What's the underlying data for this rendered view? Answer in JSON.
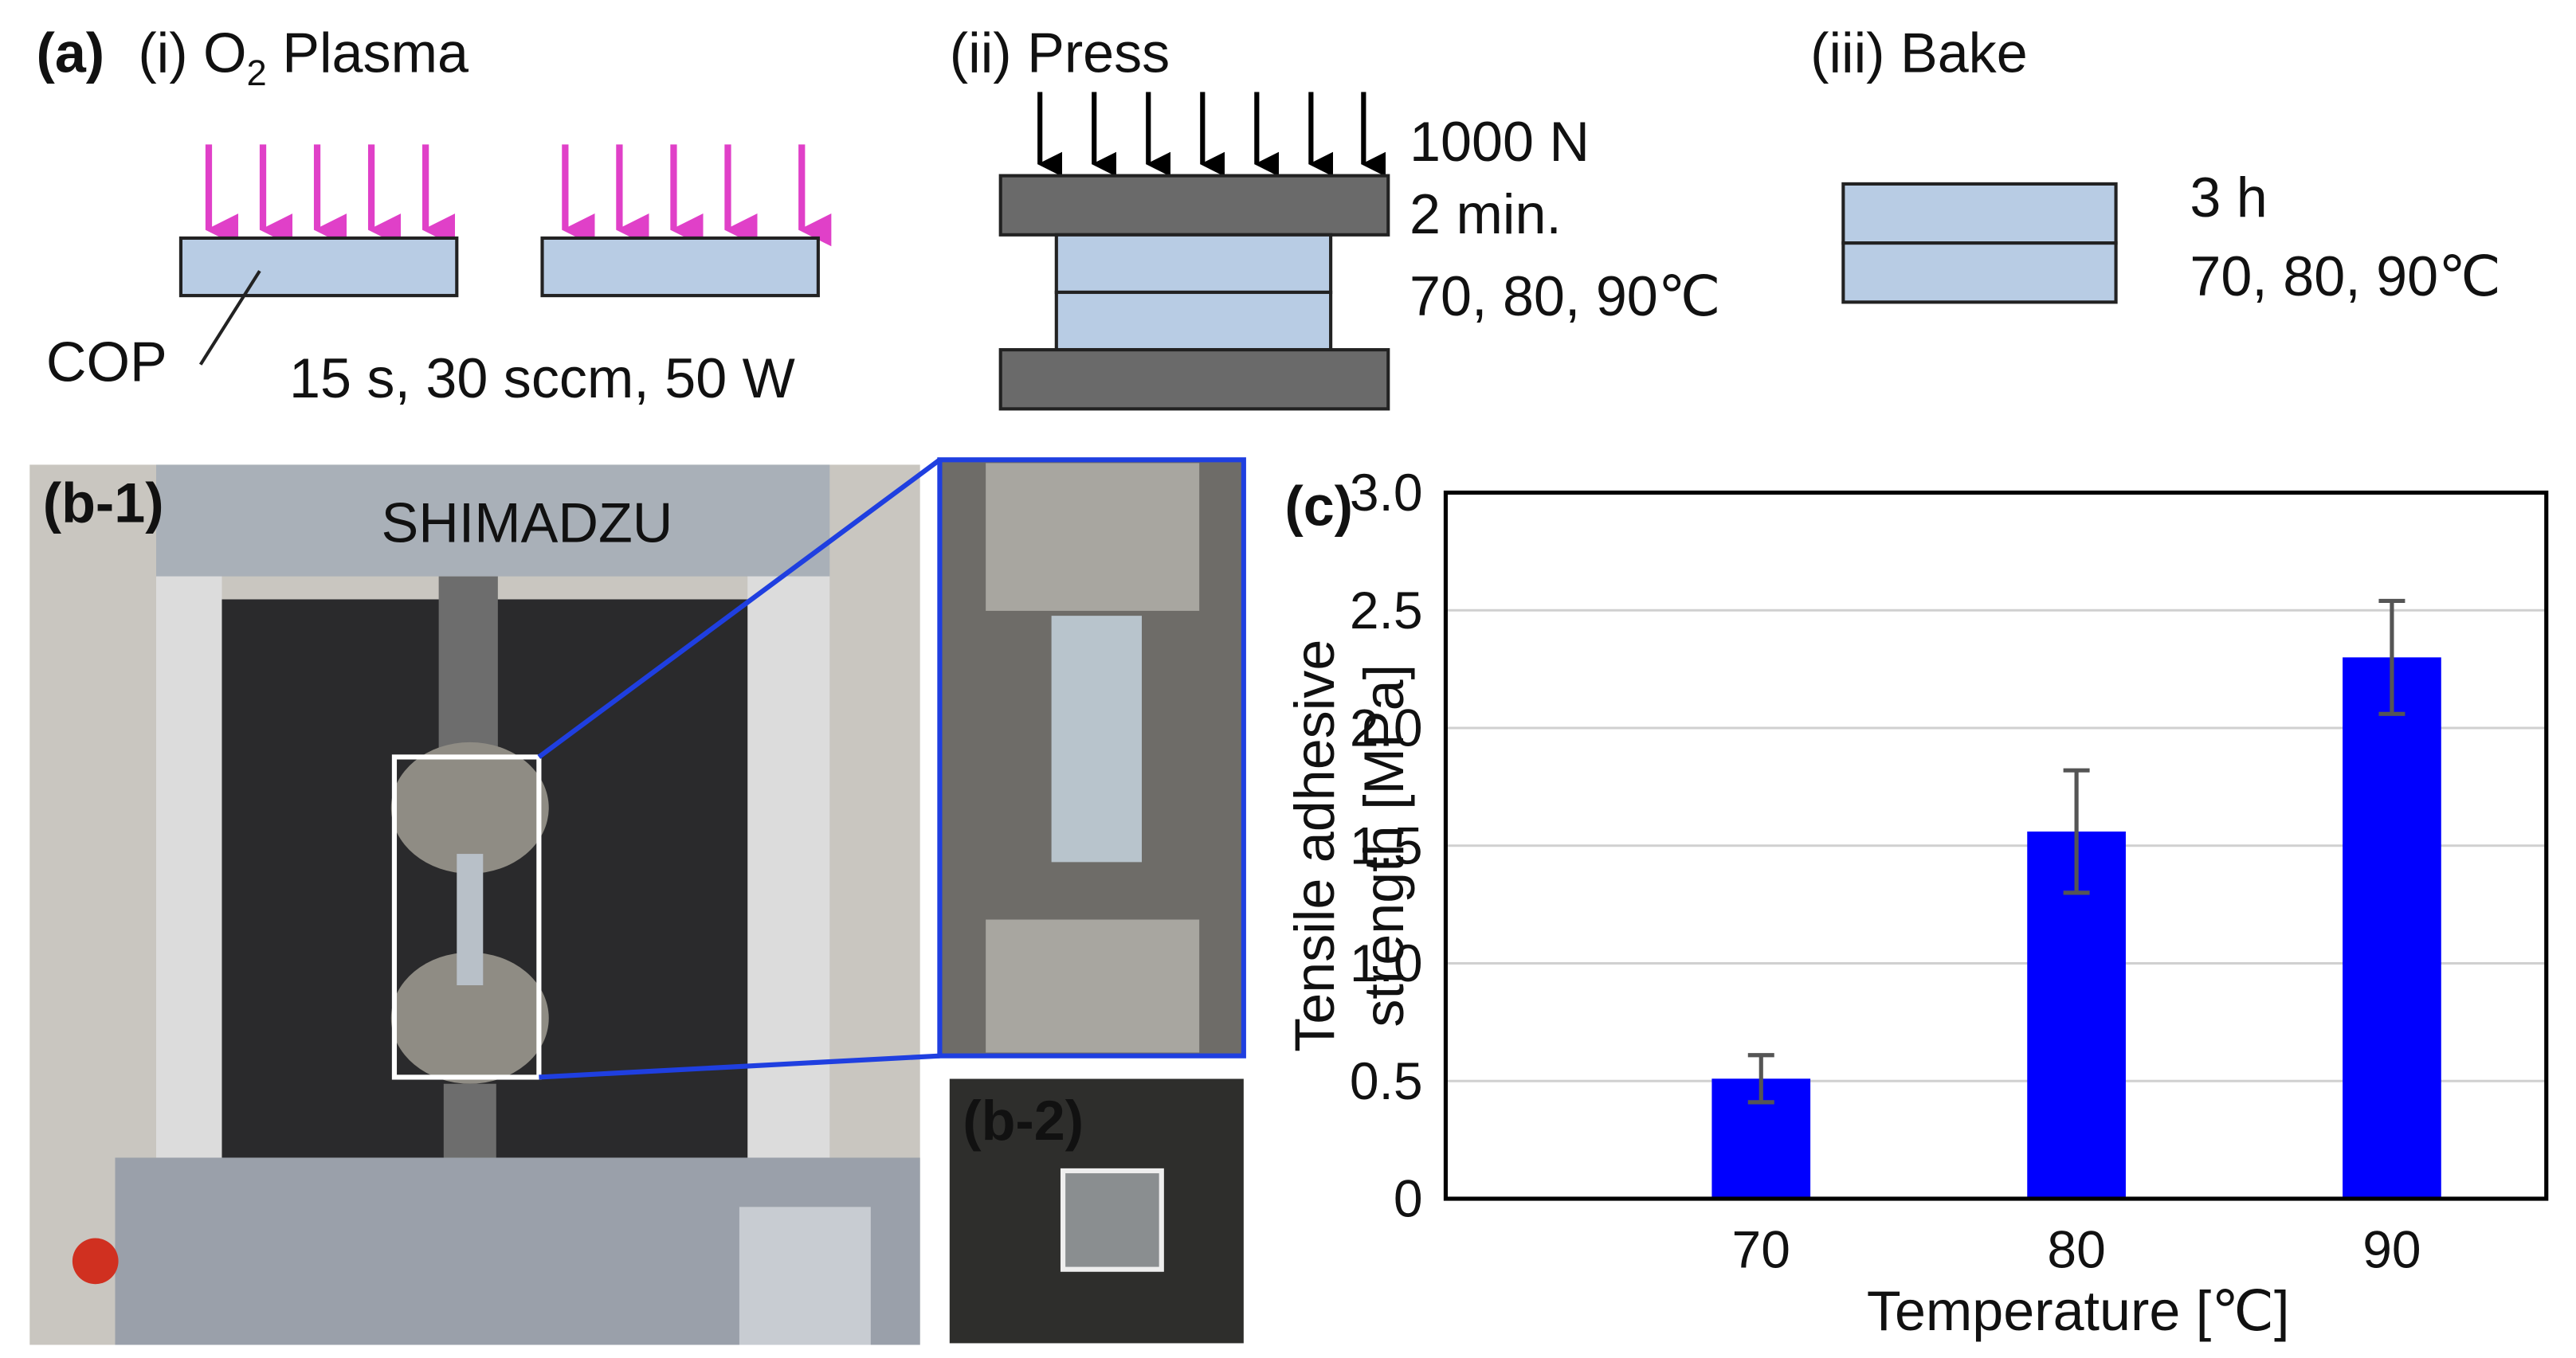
{
  "panel_a": {
    "label": "(a)",
    "step1": {
      "title_prefix": "(i) O",
      "title_subscript": "2",
      "title_suffix": " Plasma",
      "material": "COP",
      "conditions": "15 s, 30 sccm, 50 W"
    },
    "step2": {
      "title": "(ii) Press",
      "conditions": [
        "1000 N",
        "2 min.",
        "70, 80, 90℃"
      ]
    },
    "step3": {
      "title": "(iii) Bake",
      "conditions": [
        "3 h",
        "70, 80, 90℃"
      ]
    }
  },
  "photos": {
    "b1_label": "(b-1)",
    "b2_label": "(b-2)",
    "brand": "SHIMADZU"
  },
  "chart_data": {
    "type": "bar",
    "label": "(c)",
    "categories": [
      "70",
      "80",
      "90"
    ],
    "values": [
      0.51,
      1.56,
      2.3
    ],
    "errors": [
      0.1,
      0.26,
      0.24
    ],
    "color": "#0000ff",
    "x_label": "Temperature [℃]",
    "y_label": [
      "Tensile adhesive",
      "strength [MPa]"
    ],
    "ylim": [
      0,
      3
    ],
    "yticks": [
      0,
      0.5,
      {
        "value": 1,
        "label": "1.0"
      },
      1.5,
      {
        "value": 2,
        "label": "2.0"
      },
      2.5,
      {
        "value": 3,
        "label": "3.0"
      }
    ],
    "grid": true
  }
}
